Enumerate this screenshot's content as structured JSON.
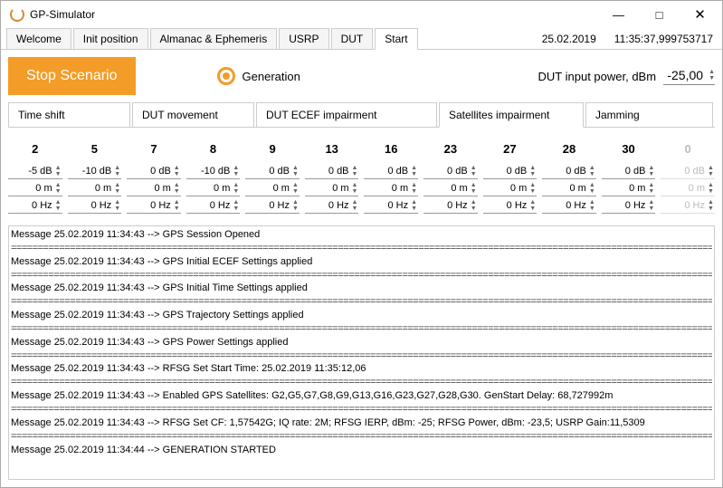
{
  "window": {
    "title": "GP-Simulator"
  },
  "header": {
    "date": "25.02.2019",
    "time": "11:35:37,999753717"
  },
  "main_tabs": {
    "items": [
      "Welcome",
      "Init position",
      "Almanac & Ephemeris",
      "USRP",
      "DUT",
      "Start"
    ],
    "active": 5
  },
  "toolbar": {
    "stop_label": "Stop Scenario",
    "generation_label": "Generation",
    "dut_power_label": "DUT input power, dBm",
    "dut_power_value": "-25,00"
  },
  "sub_tabs": {
    "items": [
      "Time shift",
      "DUT movement",
      "DUT ECEF impairment",
      "Satellites impairment",
      "Jamming"
    ],
    "active": 3
  },
  "satellites": [
    {
      "id": "2",
      "atten": "-5 dB",
      "dist": "0 m",
      "freq": "0 Hz",
      "enabled": true
    },
    {
      "id": "5",
      "atten": "-10 dB",
      "dist": "0 m",
      "freq": "0 Hz",
      "enabled": true
    },
    {
      "id": "7",
      "atten": "0 dB",
      "dist": "0 m",
      "freq": "0 Hz",
      "enabled": true
    },
    {
      "id": "8",
      "atten": "-10 dB",
      "dist": "0 m",
      "freq": "0 Hz",
      "enabled": true
    },
    {
      "id": "9",
      "atten": "0 dB",
      "dist": "0 m",
      "freq": "0 Hz",
      "enabled": true
    },
    {
      "id": "13",
      "atten": "0 dB",
      "dist": "0 m",
      "freq": "0 Hz",
      "enabled": true
    },
    {
      "id": "16",
      "atten": "0 dB",
      "dist": "0 m",
      "freq": "0 Hz",
      "enabled": true
    },
    {
      "id": "23",
      "atten": "0 dB",
      "dist": "0 m",
      "freq": "0 Hz",
      "enabled": true
    },
    {
      "id": "27",
      "atten": "0 dB",
      "dist": "0 m",
      "freq": "0 Hz",
      "enabled": true
    },
    {
      "id": "28",
      "atten": "0 dB",
      "dist": "0 m",
      "freq": "0 Hz",
      "enabled": true
    },
    {
      "id": "30",
      "atten": "0 dB",
      "dist": "0 m",
      "freq": "0 Hz",
      "enabled": true
    },
    {
      "id": "0",
      "atten": "0 dB",
      "dist": "0 m",
      "freq": "0 Hz",
      "enabled": false
    }
  ],
  "log": [
    "Message 25.02.2019 11:34:43 --> GPS Session Opened",
    "Message 25.02.2019 11:34:43 --> GPS Initial ECEF Settings applied",
    "Message 25.02.2019 11:34:43 --> GPS Initial Time Settings applied",
    "Message 25.02.2019 11:34:43 --> GPS Trajectory Settings applied",
    "Message 25.02.2019 11:34:43 --> GPS Power Settings applied",
    "Message 25.02.2019 11:34:43 --> RFSG Set Start Time: 25.02.2019 11:35:12,06",
    "Message 25.02.2019 11:34:43 --> Enabled GPS Satellites: G2,G5,G7,G8,G9,G13,G16,G23,G27,G28,G30.   GenStart Delay: 68,727992m",
    "Message 25.02.2019 11:34:43 --> RFSG Set CF: 1,57542G;   IQ rate: 2M;   RFSG IERP, dBm: -25;   RFSG Power, dBm: -23,5;   USRP Gain:11,5309",
    "Message 25.02.2019 11:34:44 --> GENERATION STARTED"
  ]
}
